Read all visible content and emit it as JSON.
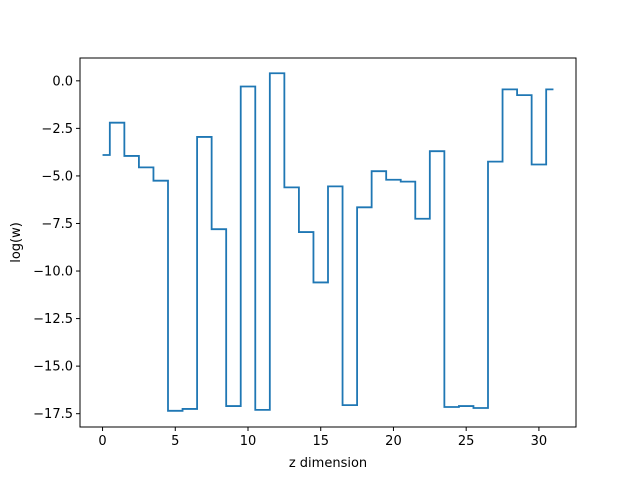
{
  "chart_data": {
    "type": "line",
    "drawstyle": "steps-mid",
    "title": "",
    "xlabel": "z dimension",
    "ylabel": "log(w)",
    "xlim": [
      -1.55,
      32.55
    ],
    "ylim": [
      -18.2,
      1.2
    ],
    "xticks": [
      0,
      5,
      10,
      15,
      20,
      25,
      30
    ],
    "yticks": [
      0.0,
      -2.5,
      -5.0,
      -7.5,
      -10.0,
      -12.5,
      -15.0,
      -17.5
    ],
    "xtick_labels": [
      "0",
      "5",
      "10",
      "15",
      "20",
      "25",
      "30"
    ],
    "ytick_labels": [
      "0.0",
      "−2.5",
      "−5.0",
      "−7.5",
      "−10.0",
      "−12.5",
      "−15.0",
      "−17.5"
    ],
    "grid": false,
    "series": [
      {
        "color": "#1f77b4",
        "x": [
          0,
          1,
          2,
          3,
          4,
          5,
          6,
          7,
          8,
          9,
          10,
          11,
          12,
          13,
          14,
          15,
          16,
          17,
          18,
          19,
          20,
          21,
          22,
          23,
          24,
          25,
          26,
          27,
          28,
          29,
          30,
          31
        ],
        "y": [
          -3.9,
          -2.2,
          -3.95,
          -4.55,
          -5.25,
          -17.35,
          -17.25,
          -2.95,
          -7.8,
          -17.1,
          -0.3,
          -17.3,
          0.4,
          -5.6,
          -7.95,
          -10.6,
          -5.55,
          -17.05,
          -6.65,
          -4.75,
          -5.2,
          -5.3,
          -7.25,
          -3.7,
          -17.15,
          -17.1,
          -17.2,
          -4.25,
          -0.45,
          -0.75,
          -4.4,
          -0.45
        ]
      }
    ]
  }
}
